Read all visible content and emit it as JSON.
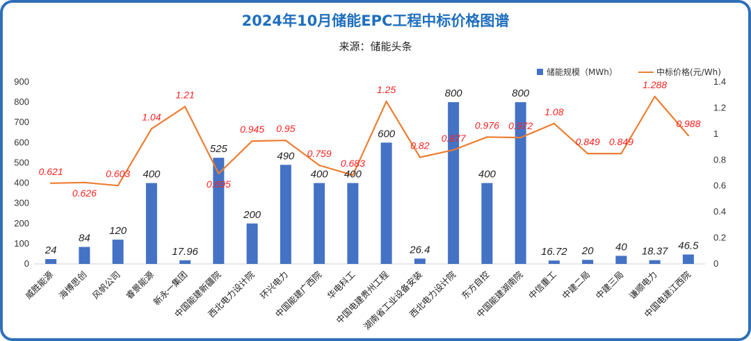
{
  "chart_data": {
    "type": "bar",
    "title": "2024年10月储能EPC工程中标价格图谱",
    "subtitle": "来源：储能头条",
    "legend_placement": "top-right",
    "categories": [
      "威胜能源",
      "海博思创",
      "风帆公司",
      "睿景能源",
      "新永一集团",
      "中国能建新疆院",
      "西北电力设计院",
      "环兴电力",
      "中国能建广西院",
      "华电科工",
      "中国电建贵州工程",
      "湖南省工业设备安装",
      "西北电力设计院",
      "东方自控",
      "中国能建湖南院",
      "中信重工",
      "中建二局",
      "中建三局",
      "谦顺电力",
      "中国电建江西院"
    ],
    "series": [
      {
        "name": "储能规模（MWh）",
        "type": "bar",
        "axis": "left",
        "color": "#4472c4",
        "values": [
          24,
          84,
          120,
          400,
          17.96,
          525,
          200,
          490,
          400,
          400,
          600,
          26.4,
          800,
          400,
          800,
          16.72,
          20,
          40,
          18.37,
          46.5
        ],
        "labels": [
          "24",
          "84",
          "120",
          "400",
          "17.96",
          "525",
          "200",
          "490",
          "400",
          "400",
          "600",
          "26.4",
          "800",
          "400",
          "800",
          "16.72",
          "20",
          "40",
          "18.37",
          "46.5"
        ]
      },
      {
        "name": "中标价格(元/Wh)",
        "type": "line",
        "axis": "right",
        "color": "#ed7d31",
        "values": [
          0.621,
          0.626,
          0.603,
          1.04,
          1.21,
          0.695,
          0.945,
          0.95,
          0.759,
          0.683,
          1.25,
          0.82,
          0.877,
          0.976,
          0.972,
          1.08,
          0.849,
          0.849,
          1.288,
          0.988
        ],
        "labels": [
          "0.621",
          "0.626",
          "0.603",
          "1.04",
          "1.21",
          "0.695",
          "0.945",
          "0.95",
          "0.759",
          "0.683",
          "1.25",
          "0.82",
          "0.877",
          "0.976",
          "0.972",
          "1.08",
          "0.849",
          "0.849",
          "1.288",
          "0.988"
        ]
      }
    ],
    "ylim_left": [
      0,
      900
    ],
    "yticks_left": [
      "0",
      "100",
      "200",
      "300",
      "400",
      "500",
      "600",
      "700",
      "800",
      "900"
    ],
    "ylim_right": [
      0,
      1.4
    ],
    "yticks_right": [
      "0",
      "0.2",
      "0.4",
      "0.6",
      "0.8",
      "1",
      "1.2",
      "1.4"
    ],
    "grid": false
  }
}
